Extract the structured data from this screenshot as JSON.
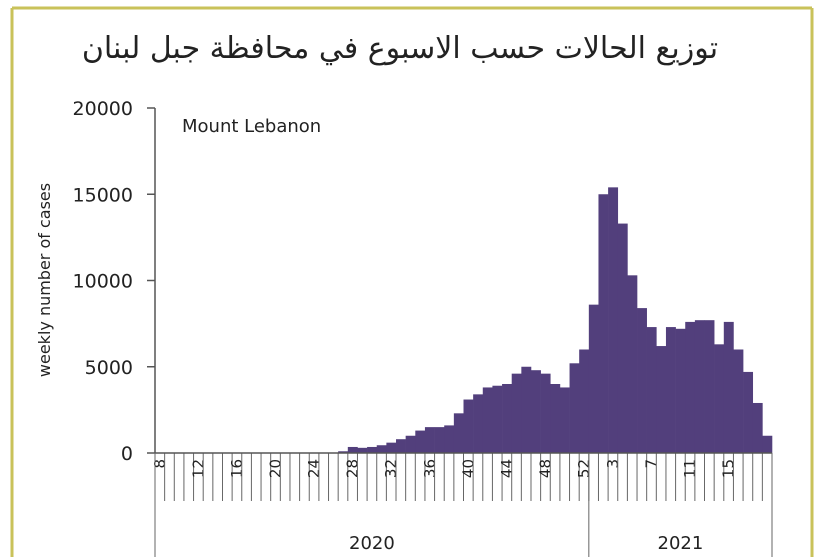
{
  "chart_data": {
    "type": "bar",
    "title": "توزيع الحالات حسب الاسبوع في محافظة جبل لبنان",
    "annotation": "Mount Lebanon",
    "y_label": "weekly number of cases",
    "color": "#523f7c",
    "ylim": [
      0,
      20000
    ],
    "yticks": [
      0,
      5000,
      10000,
      15000,
      20000
    ],
    "categories": [
      "8",
      null,
      null,
      null,
      "12",
      null,
      null,
      null,
      "16",
      null,
      null,
      null,
      "20",
      null,
      null,
      null,
      "24",
      null,
      null,
      null,
      "28",
      null,
      null,
      null,
      "32",
      null,
      null,
      null,
      "36",
      null,
      null,
      null,
      "40",
      null,
      null,
      null,
      "44",
      null,
      null,
      null,
      "48",
      null,
      null,
      null,
      "52",
      null,
      null,
      "3",
      null,
      null,
      null,
      "7",
      null,
      null,
      null,
      "11",
      null,
      null,
      null,
      "15",
      null,
      null,
      null,
      null
    ],
    "values": [
      0,
      0,
      0,
      0,
      0,
      0,
      0,
      0,
      0,
      0,
      0,
      0,
      0,
      0,
      0,
      0,
      0,
      0,
      0,
      100,
      350,
      300,
      350,
      450,
      600,
      800,
      1000,
      1300,
      1500,
      1500,
      1600,
      2300,
      3100,
      3400,
      3800,
      3900,
      4000,
      4600,
      5000,
      4800,
      4600,
      4000,
      3800,
      5200,
      6000,
      8600,
      15000,
      15400,
      13300,
      10300,
      8400,
      7300,
      6200,
      7300,
      7200,
      7600,
      7700,
      7700,
      6300,
      7600,
      6000,
      4700,
      2900,
      1000
    ],
    "x_groups": [
      "2020",
      "2021"
    ]
  }
}
